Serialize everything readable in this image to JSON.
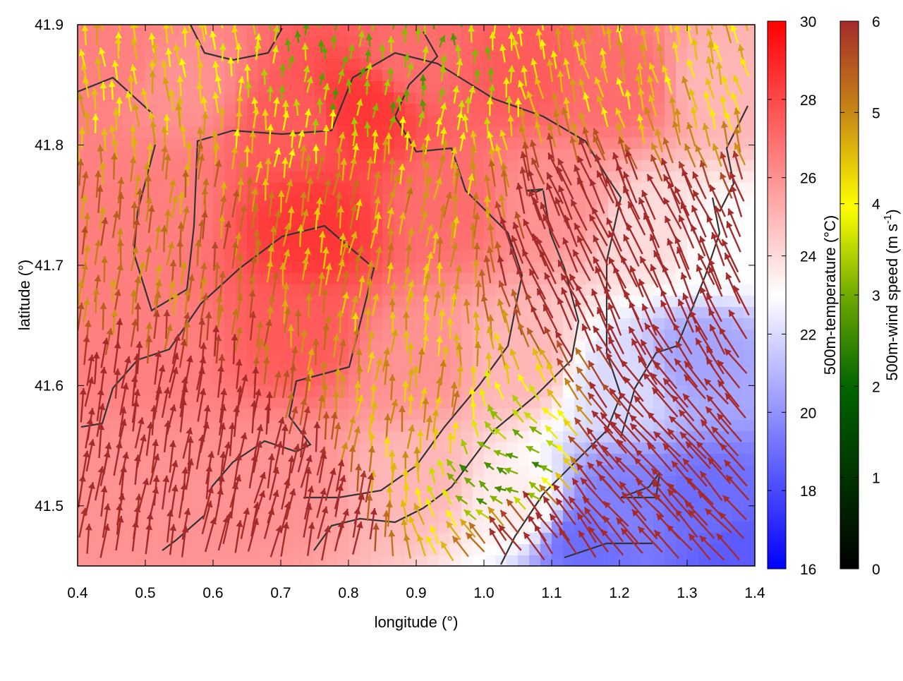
{
  "chart_data": {
    "type": "heatmap",
    "title": "",
    "xlabel": "longitude (°)",
    "ylabel": "latitude (°)",
    "xlim": [
      0.4,
      1.4
    ],
    "ylim": [
      41.45,
      41.9
    ],
    "xticks": [
      "0.4",
      "0.5",
      "0.6",
      "0.7",
      "0.8",
      "0.9",
      "1.0",
      "1.1",
      "1.2",
      "1.3",
      "1.4"
    ],
    "yticks": [
      "41.5",
      "41.6",
      "41.7",
      "41.8",
      "41.9"
    ],
    "xtick_values": [
      0.4,
      0.5,
      0.6,
      0.7,
      0.8,
      0.9,
      1.0,
      1.1,
      1.2,
      1.3,
      1.4
    ],
    "ytick_values": [
      41.5,
      41.6,
      41.7,
      41.8,
      41.9
    ],
    "temperature_colorbar": {
      "label": "500m-temperature (°C)",
      "range": [
        16,
        30
      ],
      "ticks": [
        "16",
        "18",
        "20",
        "22",
        "24",
        "26",
        "28",
        "30"
      ],
      "colors": [
        "#0000ff",
        "#ffffff",
        "#ff0000"
      ]
    },
    "wind_colorbar": {
      "label_main": "500m-wind speed (m s",
      "label_sup": "-1",
      "label_end": ")",
      "range": [
        0,
        6
      ],
      "ticks": [
        "0",
        "1",
        "2",
        "3",
        "4",
        "5",
        "6"
      ],
      "colors": [
        "#000000",
        "#006400",
        "#6faa00",
        "#ffff00",
        "#c88a14",
        "#a52a2a"
      ]
    },
    "temperature_field_approx": [
      {
        "lon": 0.45,
        "lat": 41.87,
        "t": 26.5
      },
      {
        "lon": 0.55,
        "lat": 41.85,
        "t": 26.0
      },
      {
        "lon": 0.72,
        "lat": 41.82,
        "t": 27.5
      },
      {
        "lon": 0.82,
        "lat": 41.83,
        "t": 28.5
      },
      {
        "lon": 0.9,
        "lat": 41.87,
        "t": 27.0
      },
      {
        "lon": 1.05,
        "lat": 41.86,
        "t": 27.5
      },
      {
        "lon": 1.2,
        "lat": 41.85,
        "t": 27.0
      },
      {
        "lon": 1.35,
        "lat": 41.85,
        "t": 25.0
      },
      {
        "lon": 0.5,
        "lat": 41.75,
        "t": 26.5
      },
      {
        "lon": 0.75,
        "lat": 41.73,
        "t": 28.5
      },
      {
        "lon": 0.95,
        "lat": 41.75,
        "t": 27.0
      },
      {
        "lon": 1.1,
        "lat": 41.75,
        "t": 26.0
      },
      {
        "lon": 1.25,
        "lat": 41.73,
        "t": 24.0
      },
      {
        "lon": 1.35,
        "lat": 41.72,
        "t": 23.0
      },
      {
        "lon": 0.5,
        "lat": 41.63,
        "t": 26.5
      },
      {
        "lon": 0.73,
        "lat": 41.64,
        "t": 27.5
      },
      {
        "lon": 0.9,
        "lat": 41.62,
        "t": 26.0
      },
      {
        "lon": 1.05,
        "lat": 41.62,
        "t": 25.0
      },
      {
        "lon": 1.2,
        "lat": 41.6,
        "t": 22.0
      },
      {
        "lon": 1.32,
        "lat": 41.62,
        "t": 20.5
      },
      {
        "lon": 0.5,
        "lat": 41.52,
        "t": 26.0
      },
      {
        "lon": 0.7,
        "lat": 41.52,
        "t": 26.0
      },
      {
        "lon": 0.9,
        "lat": 41.52,
        "t": 25.0
      },
      {
        "lon": 1.05,
        "lat": 41.5,
        "t": 23.5
      },
      {
        "lon": 1.2,
        "lat": 41.5,
        "t": 19.5
      },
      {
        "lon": 1.33,
        "lat": 41.5,
        "t": 19.0
      },
      {
        "lon": 1.15,
        "lat": 41.47,
        "t": 19.0
      },
      {
        "lon": 1.38,
        "lat": 41.46,
        "t": 18.5
      }
    ],
    "wind_field_approx": [
      {
        "lon": 0.45,
        "lat": 41.87,
        "u": -0.5,
        "v": 4.0
      },
      {
        "lon": 0.85,
        "lat": 41.87,
        "u": 0.3,
        "v": 2.5
      },
      {
        "lon": 1.25,
        "lat": 41.86,
        "u": -1.0,
        "v": 4.0
      },
      {
        "lon": 0.5,
        "lat": 41.7,
        "u": 0.5,
        "v": 5.0
      },
      {
        "lon": 0.85,
        "lat": 41.72,
        "u": 0.8,
        "v": 4.5
      },
      {
        "lon": 1.2,
        "lat": 41.7,
        "u": -3.0,
        "v": 6.5
      },
      {
        "lon": 0.5,
        "lat": 41.55,
        "u": 1.0,
        "v": 6.5
      },
      {
        "lon": 0.9,
        "lat": 41.57,
        "u": 0.5,
        "v": 4.5
      },
      {
        "lon": 1.05,
        "lat": 41.52,
        "u": -2.0,
        "v": 1.0
      },
      {
        "lon": 1.25,
        "lat": 41.52,
        "u": -5.0,
        "v": 5.5
      },
      {
        "lon": 0.7,
        "lat": 41.47,
        "u": 1.5,
        "v": 6.5
      },
      {
        "lon": 1.1,
        "lat": 41.47,
        "u": -4.0,
        "v": 5.5
      }
    ]
  }
}
